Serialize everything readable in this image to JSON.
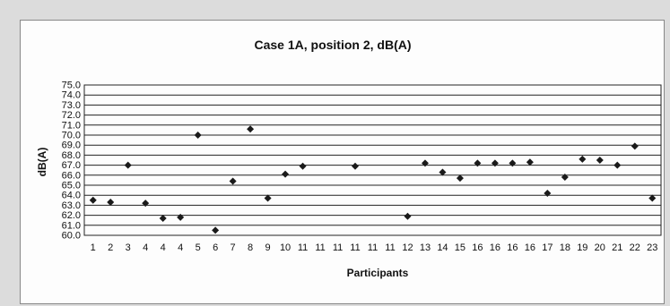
{
  "chart_data": {
    "type": "scatter",
    "title": "Case 1A, position 2, dB(A)",
    "xlabel": "Participants",
    "ylabel": "dB(A)",
    "ylim": [
      60.0,
      75.0
    ],
    "yticks": [
      "60.0",
      "61.0",
      "62.0",
      "63.0",
      "64.0",
      "65.0",
      "66.0",
      "67.0",
      "68.0",
      "69.0",
      "70.0",
      "71.0",
      "72.0",
      "73.0",
      "74.0",
      "75.0"
    ],
    "categories": [
      "1",
      "2",
      "3",
      "4",
      "4",
      "4",
      "5",
      "6",
      "7",
      "8",
      "9",
      "10",
      "11",
      "11",
      "11",
      "11",
      "11",
      "11",
      "12",
      "13",
      "14",
      "15",
      "16",
      "16",
      "16",
      "16",
      "17",
      "18",
      "19",
      "20",
      "21",
      "22",
      "23"
    ],
    "values": [
      63.5,
      63.3,
      67.0,
      63.2,
      61.7,
      61.8,
      70.0,
      60.5,
      65.4,
      70.6,
      63.7,
      66.1,
      66.9,
      null,
      null,
      66.9,
      null,
      null,
      61.9,
      67.2,
      66.3,
      65.7,
      67.2,
      67.2,
      67.2,
      67.3,
      64.2,
      65.8,
      67.6,
      67.5,
      67.0,
      68.9,
      63.7
    ],
    "grid": true,
    "marker_color": "#1a1a1a"
  }
}
